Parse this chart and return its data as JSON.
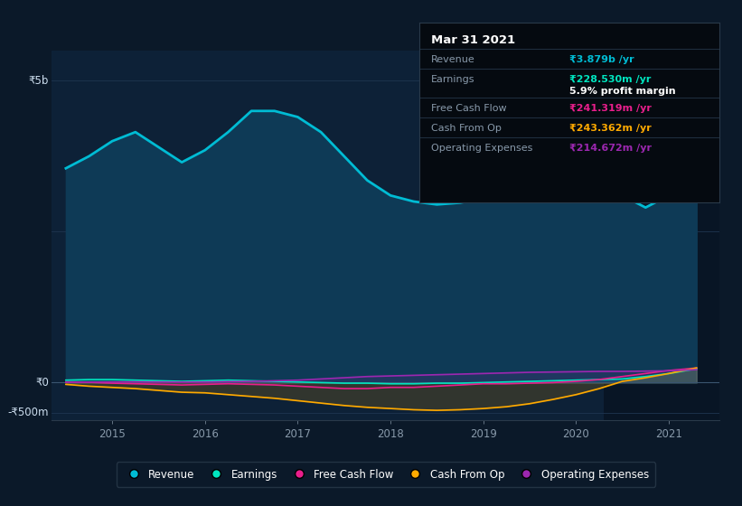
{
  "background_color": "#0b1929",
  "plot_bg_color": "#0d2137",
  "title_text": "Mar 31 2021",
  "y_label_5b": "₹5b",
  "y_label_0": "₹0",
  "y_label_neg500m": "-₹500m",
  "x_ticks": [
    2015,
    2016,
    2017,
    2018,
    2019,
    2020,
    2021
  ],
  "ylim": [
    -620000000,
    5500000000
  ],
  "xlim": [
    2014.35,
    2021.55
  ],
  "revenue_color": "#00bcd4",
  "earnings_color": "#00e5c0",
  "fcf_color": "#e91e8c",
  "cashfromop_color": "#ffaa00",
  "opex_color": "#9c27b0",
  "revenue_x": [
    2014.5,
    2014.75,
    2015.0,
    2015.25,
    2015.5,
    2015.75,
    2016.0,
    2016.25,
    2016.5,
    2016.75,
    2017.0,
    2017.25,
    2017.5,
    2017.75,
    2018.0,
    2018.25,
    2018.5,
    2018.75,
    2019.0,
    2019.25,
    2019.5,
    2019.75,
    2020.0,
    2020.25,
    2020.5,
    2020.75,
    2021.0,
    2021.3
  ],
  "revenue_y": [
    3550000000,
    3750000000,
    4000000000,
    4150000000,
    3900000000,
    3650000000,
    3850000000,
    4150000000,
    4500000000,
    4500000000,
    4400000000,
    4150000000,
    3750000000,
    3350000000,
    3100000000,
    3000000000,
    2950000000,
    2980000000,
    3050000000,
    3150000000,
    3350000000,
    3600000000,
    3750000000,
    3650000000,
    3100000000,
    2900000000,
    3100000000,
    3879000000
  ],
  "earnings_y": [
    40000000,
    50000000,
    50000000,
    40000000,
    30000000,
    20000000,
    30000000,
    40000000,
    30000000,
    20000000,
    10000000,
    0,
    -10000000,
    -10000000,
    -20000000,
    -20000000,
    -10000000,
    -10000000,
    0,
    10000000,
    20000000,
    30000000,
    40000000,
    50000000,
    60000000,
    100000000,
    150000000,
    228530000
  ],
  "fcf_y": [
    10000000,
    5000000,
    -10000000,
    -20000000,
    -30000000,
    -40000000,
    -30000000,
    -20000000,
    -30000000,
    -40000000,
    -60000000,
    -80000000,
    -100000000,
    -100000000,
    -80000000,
    -80000000,
    -60000000,
    -40000000,
    -20000000,
    -20000000,
    -10000000,
    0,
    20000000,
    50000000,
    100000000,
    150000000,
    200000000,
    241319000
  ],
  "cashfromop_y": [
    -30000000,
    -60000000,
    -80000000,
    -100000000,
    -130000000,
    -160000000,
    -170000000,
    -200000000,
    -230000000,
    -260000000,
    -300000000,
    -340000000,
    -380000000,
    -410000000,
    -430000000,
    -450000000,
    -460000000,
    -450000000,
    -430000000,
    -400000000,
    -350000000,
    -280000000,
    -200000000,
    -100000000,
    20000000,
    80000000,
    150000000,
    243362000
  ],
  "opex_y": [
    5000000,
    8000000,
    10000000,
    12000000,
    10000000,
    8000000,
    10000000,
    15000000,
    20000000,
    30000000,
    40000000,
    60000000,
    80000000,
    100000000,
    110000000,
    120000000,
    130000000,
    140000000,
    150000000,
    160000000,
    170000000,
    175000000,
    180000000,
    185000000,
    185000000,
    190000000,
    195000000,
    214672000
  ],
  "revenue_value": "₹3.879b /yr",
  "earnings_value": "₹228.530m /yr",
  "profit_margin": "5.9% profit margin",
  "fcf_value": "₹241.319m /yr",
  "cashfromop_value": "₹243.362m /yr",
  "opex_value": "₹214.672m /yr"
}
